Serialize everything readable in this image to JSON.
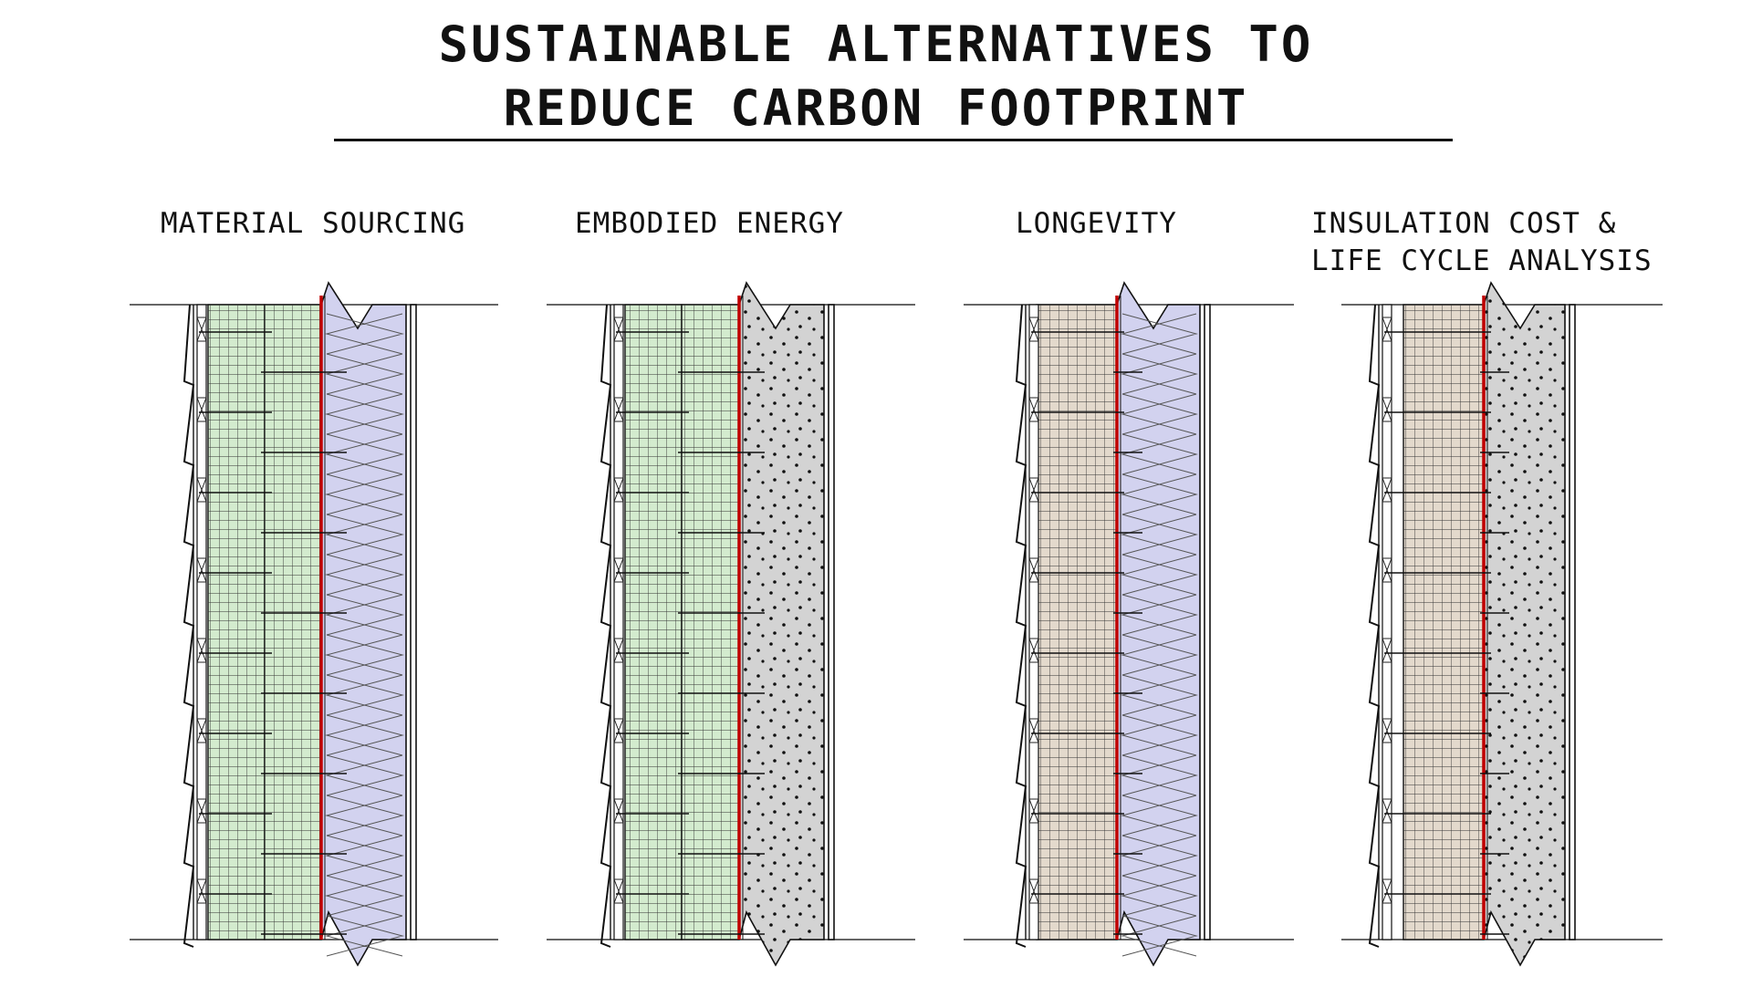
{
  "title": {
    "line1": "SUSTAINABLE ALTERNATIVES TO",
    "line2": "REDUCE CARBON FOOTPRINT"
  },
  "columns": [
    {
      "label_lines": [
        "MATERIAL SOURCING"
      ],
      "sheathing": "green",
      "insulation": "batt"
    },
    {
      "label_lines": [
        "EMBODIED ENERGY"
      ],
      "sheathing": "green",
      "insulation": "dotted"
    },
    {
      "label_lines": [
        "LONGEVITY"
      ],
      "sheathing": "tan",
      "insulation": "batt"
    },
    {
      "label_lines": [
        "INSULATION COST &",
        "LIFE CYCLE ANALYSIS"
      ],
      "sheathing": "tan",
      "insulation": "dotted"
    }
  ],
  "colors": {
    "green_board": "#d3ebce",
    "tan_board": "#e3d9cc",
    "batt_insulation": "#d2d2ef",
    "dotted_insulation": "#d3d3d3",
    "air_barrier": "#c00000",
    "line": "#111111"
  }
}
